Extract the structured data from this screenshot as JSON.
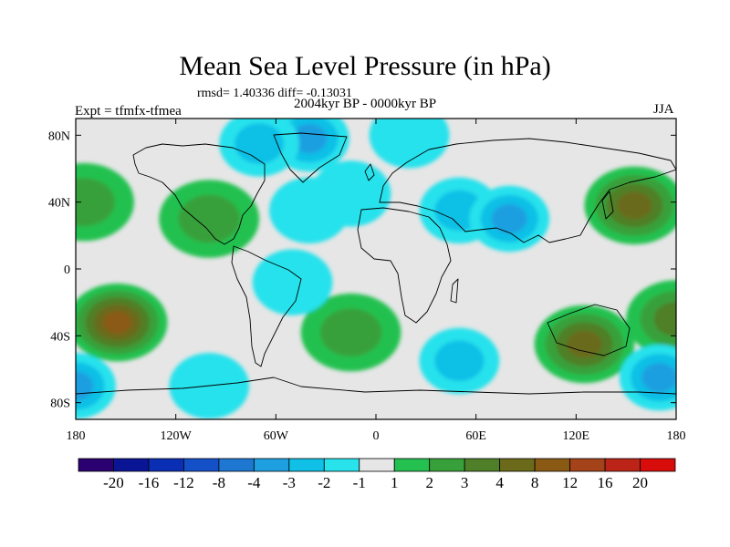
{
  "title": "Mean Sea Level Pressure (in hPa)",
  "stats": "rmsd= 1.40336 diff= -0.13031",
  "period": "2004kyr BP - 0000kyr BP",
  "expt": "Expt = tfmfx-tfmea",
  "season": "JJA",
  "lat_ticks": [
    {
      "label": "80N",
      "value": 80
    },
    {
      "label": "40N",
      "value": 40
    },
    {
      "label": "0",
      "value": 0
    },
    {
      "label": "40S",
      "value": -40
    },
    {
      "label": "80S",
      "value": -80
    }
  ],
  "lon_ticks": [
    {
      "label": "180",
      "value": -180
    },
    {
      "label": "120W",
      "value": -120
    },
    {
      "label": "60W",
      "value": -60
    },
    {
      "label": "0",
      "value": 0
    },
    {
      "label": "60E",
      "value": 60
    },
    {
      "label": "120E",
      "value": 120
    },
    {
      "label": "180",
      "value": 180
    }
  ],
  "colorbar": {
    "colors": [
      "#2b0070",
      "#0a1596",
      "#0a2fb4",
      "#1450c8",
      "#1e78d2",
      "#1e9fe0",
      "#10c0e6",
      "#28e2ec",
      "#e6e6e6",
      "#24c150",
      "#38a03a",
      "#4f7f28",
      "#6b6a1a",
      "#8a5a14",
      "#a4421a",
      "#bc2418",
      "#d90c0c"
    ],
    "labels": [
      "-20",
      "-16",
      "-12",
      "-8",
      "-4",
      "-3",
      "-2",
      "-1",
      "1",
      "2",
      "3",
      "4",
      "8",
      "12",
      "16",
      "20"
    ]
  },
  "chart_data": {
    "type": "heatmap",
    "title": "Mean Sea Level Pressure (in hPa)",
    "variable": "Mean sea level pressure difference",
    "units": "hPa",
    "xlabel": "",
    "ylabel": "",
    "xlim": [
      -180,
      180
    ],
    "ylim": [
      -90,
      90
    ],
    "levels": [
      -20,
      -16,
      -12,
      -8,
      -4,
      -3,
      -2,
      -1,
      1,
      2,
      3,
      4,
      8,
      12,
      16,
      20
    ],
    "background_value": 0,
    "anomalies": [
      {
        "lon": -175,
        "lat": 40,
        "value": 2.6
      },
      {
        "lon": -100,
        "lat": 30,
        "value": 2.2
      },
      {
        "lon": -155,
        "lat": -32,
        "value": 8.5
      },
      {
        "lon": -15,
        "lat": -38,
        "value": 2.4
      },
      {
        "lon": 125,
        "lat": -45,
        "value": 5.5
      },
      {
        "lon": 180,
        "lat": -30,
        "value": 3.5
      },
      {
        "lon": 155,
        "lat": 38,
        "value": 6.5
      },
      {
        "lon": -180,
        "lat": -70,
        "value": -3.2
      },
      {
        "lon": -100,
        "lat": -70,
        "value": -1.5
      },
      {
        "lon": 50,
        "lat": -55,
        "value": -2.4
      },
      {
        "lon": 170,
        "lat": -65,
        "value": -3.0
      },
      {
        "lon": -40,
        "lat": 78,
        "value": -3.2
      },
      {
        "lon": -70,
        "lat": 75,
        "value": -2.2
      },
      {
        "lon": 20,
        "lat": 80,
        "value": -1.5
      },
      {
        "lon": 50,
        "lat": 35,
        "value": -2.4
      },
      {
        "lon": 80,
        "lat": 30,
        "value": -3.0
      },
      {
        "lon": -50,
        "lat": -8,
        "value": -1.5
      },
      {
        "lon": -40,
        "lat": 35,
        "value": -1.5
      },
      {
        "lon": -15,
        "lat": 45,
        "value": -1.4
      }
    ]
  }
}
